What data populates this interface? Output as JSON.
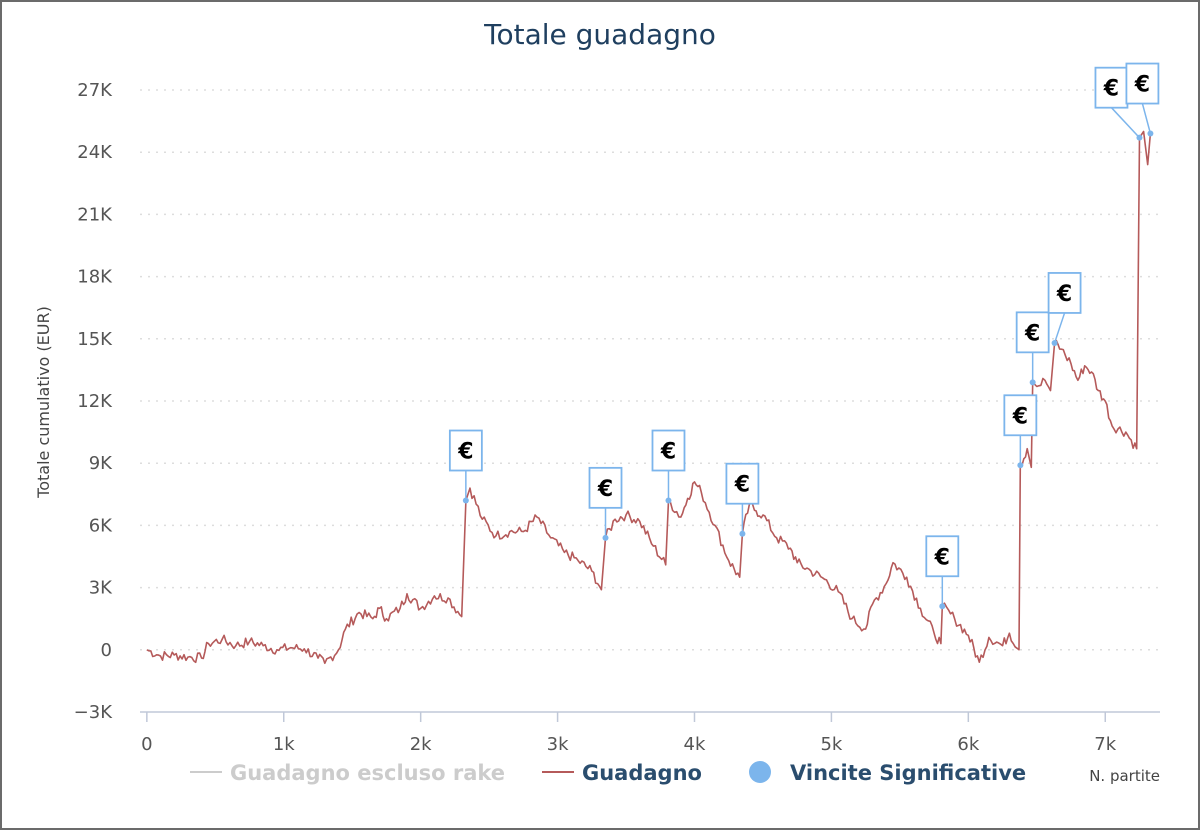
{
  "colors": {
    "line": "#b55a5a",
    "marker": "#7cb5ec",
    "grid": "#dddddd",
    "axis": "#c0c8d8",
    "title": "#1f3f5f",
    "legend_inactive": "#cccccc",
    "legend_active": "#2a4d6e"
  },
  "chart_data": {
    "type": "line",
    "title": "Totale guadagno",
    "xlabel": "N. partite",
    "ylabel": "Totale cumulativo (EUR)",
    "xlim": [
      -50,
      7400
    ],
    "ylim": [
      -3000,
      27000
    ],
    "x_ticks": [
      0,
      1000,
      2000,
      3000,
      4000,
      5000,
      6000,
      7000
    ],
    "x_tick_labels": [
      "0",
      "1k",
      "2k",
      "3k",
      "4k",
      "5k",
      "6k",
      "7k"
    ],
    "y_ticks": [
      -3000,
      0,
      3000,
      6000,
      9000,
      12000,
      15000,
      18000,
      21000,
      24000,
      27000
    ],
    "y_tick_labels": [
      "−3K",
      "0",
      "3K",
      "6K",
      "9K",
      "12K",
      "15K",
      "18K",
      "21K",
      "24K",
      "27K"
    ],
    "grid": true,
    "legend": {
      "position": "bottom",
      "items": [
        {
          "label": "Guadagno escluso rake",
          "symbol": "line",
          "active": false
        },
        {
          "label": "Guadagno",
          "symbol": "line",
          "active": true
        },
        {
          "label": "Vincite Significative",
          "symbol": "circle",
          "active": true
        }
      ]
    },
    "series": [
      {
        "name": "Guadagno",
        "points": [
          [
            0,
            0
          ],
          [
            100,
            -300
          ],
          [
            200,
            -250
          ],
          [
            300,
            -350
          ],
          [
            400,
            -400
          ],
          [
            450,
            300
          ],
          [
            550,
            500
          ],
          [
            650,
            200
          ],
          [
            750,
            400
          ],
          [
            850,
            200
          ],
          [
            950,
            0
          ],
          [
            1050,
            100
          ],
          [
            1150,
            50
          ],
          [
            1250,
            -400
          ],
          [
            1300,
            -650
          ],
          [
            1400,
            0
          ],
          [
            1450,
            1000
          ],
          [
            1550,
            1800
          ],
          [
            1650,
            1500
          ],
          [
            1700,
            2000
          ],
          [
            1750,
            1500
          ],
          [
            1850,
            2000
          ],
          [
            1900,
            2700
          ],
          [
            2000,
            2000
          ],
          [
            2100,
            2600
          ],
          [
            2200,
            2500
          ],
          [
            2300,
            1600
          ],
          [
            2330,
            7200
          ],
          [
            2360,
            7800
          ],
          [
            2450,
            6300
          ],
          [
            2550,
            5500
          ],
          [
            2650,
            5700
          ],
          [
            2750,
            5700
          ],
          [
            2850,
            6400
          ],
          [
            2950,
            5400
          ],
          [
            3050,
            4700
          ],
          [
            3150,
            4300
          ],
          [
            3250,
            3800
          ],
          [
            3320,
            2900
          ],
          [
            3350,
            5400
          ],
          [
            3420,
            6300
          ],
          [
            3500,
            6500
          ],
          [
            3600,
            6200
          ],
          [
            3700,
            5000
          ],
          [
            3790,
            4100
          ],
          [
            3810,
            7200
          ],
          [
            3900,
            6400
          ],
          [
            3950,
            7300
          ],
          [
            4000,
            8100
          ],
          [
            4050,
            7600
          ],
          [
            4150,
            6000
          ],
          [
            4250,
            4300
          ],
          [
            4330,
            3500
          ],
          [
            4350,
            5600
          ],
          [
            4400,
            7000
          ],
          [
            4450,
            6700
          ],
          [
            4500,
            6500
          ],
          [
            4600,
            5400
          ],
          [
            4700,
            4900
          ],
          [
            4750,
            4200
          ],
          [
            4850,
            3800
          ],
          [
            4950,
            3400
          ],
          [
            5050,
            2800
          ],
          [
            5150,
            1500
          ],
          [
            5250,
            1000
          ],
          [
            5300,
            2200
          ],
          [
            5400,
            3200
          ],
          [
            5450,
            4200
          ],
          [
            5550,
            3500
          ],
          [
            5650,
            2000
          ],
          [
            5750,
            800
          ],
          [
            5800,
            300
          ],
          [
            5810,
            2100
          ],
          [
            5900,
            1500
          ],
          [
            6000,
            700
          ],
          [
            6080,
            -600
          ],
          [
            6150,
            600
          ],
          [
            6250,
            200
          ],
          [
            6300,
            800
          ],
          [
            6370,
            0
          ],
          [
            6380,
            8900
          ],
          [
            6430,
            9700
          ],
          [
            6460,
            8800
          ],
          [
            6470,
            12900
          ],
          [
            6500,
            12700
          ],
          [
            6560,
            13000
          ],
          [
            6600,
            12500
          ],
          [
            6630,
            14800
          ],
          [
            6680,
            14500
          ],
          [
            6750,
            13800
          ],
          [
            6800,
            13000
          ],
          [
            6850,
            13700
          ],
          [
            6900,
            13400
          ],
          [
            6950,
            12500
          ],
          [
            7000,
            12000
          ],
          [
            7050,
            10800
          ],
          [
            7150,
            10500
          ],
          [
            7230,
            9700
          ],
          [
            7250,
            24700
          ],
          [
            7280,
            25000
          ],
          [
            7310,
            23400
          ],
          [
            7330,
            24900
          ]
        ]
      },
      {
        "name": "Vincite Significative",
        "points": [
          [
            2330,
            7200
          ],
          [
            3350,
            5400
          ],
          [
            3810,
            7200
          ],
          [
            4350,
            5600
          ],
          [
            5810,
            2100
          ],
          [
            6380,
            8900
          ],
          [
            6470,
            12900
          ],
          [
            6630,
            14800
          ],
          [
            7250,
            24700
          ],
          [
            7330,
            24900
          ]
        ]
      }
    ]
  },
  "flag_symbol": "€"
}
